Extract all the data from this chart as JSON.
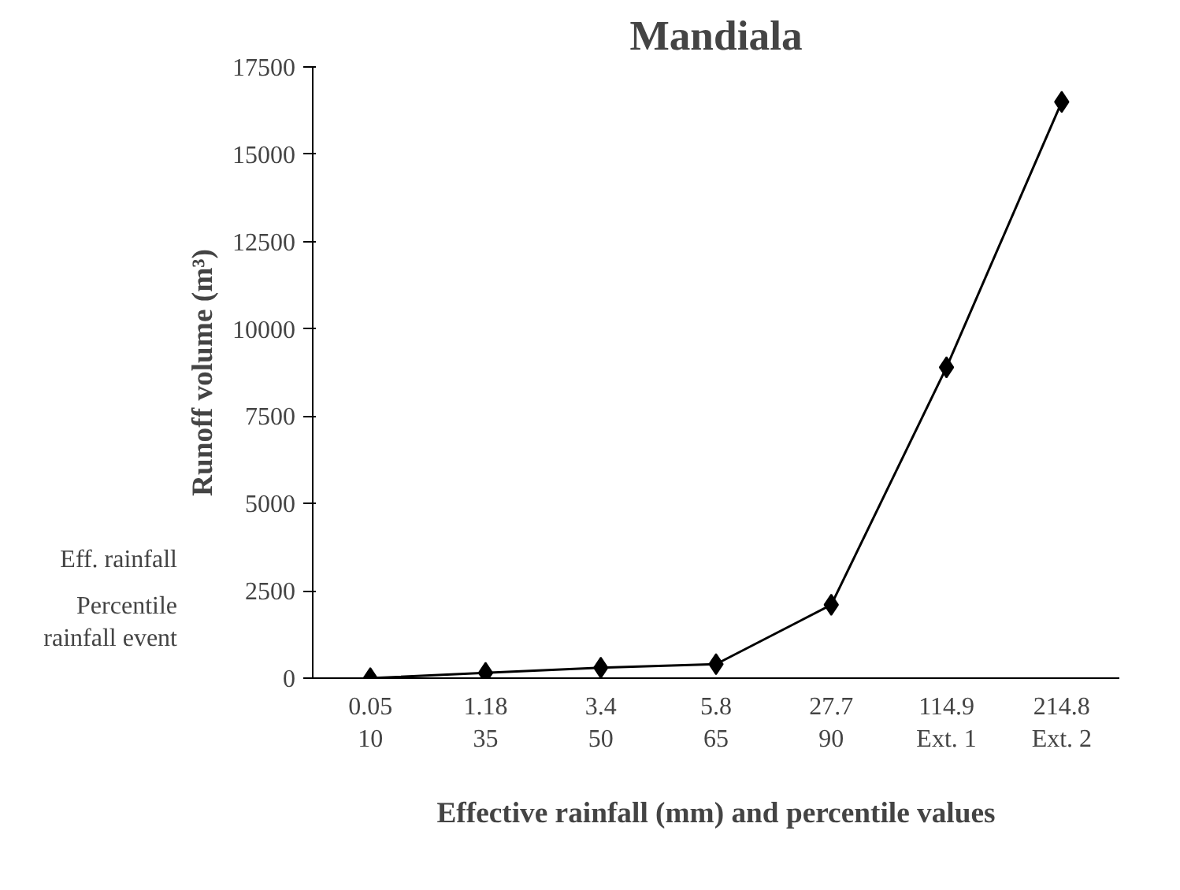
{
  "chart_data": {
    "type": "line",
    "title": "Mandiala",
    "xlabel": "Effective rainfall (mm) and percentile values",
    "ylabel": "Runoff volume (m³)",
    "categories": [
      "0.05\n10",
      "1.18\n35",
      "3.4\n50",
      "5.8\n65",
      "27.7\n90",
      "114.9\nExt. 1",
      "214.8\nExt. 2"
    ],
    "series": [
      {
        "color": "#000000",
        "values": [
          0,
          150,
          300,
          400,
          2100,
          8900,
          16500
        ]
      }
    ],
    "ylim": [
      0,
      17500
    ],
    "yticks": [
      0,
      2500,
      5000,
      7500,
      10000,
      12500,
      15000,
      17500
    ],
    "annotations": [
      "Eff. rainfall",
      "Percentile\nrainfall event"
    ],
    "marker": "diamond",
    "grid": false
  }
}
